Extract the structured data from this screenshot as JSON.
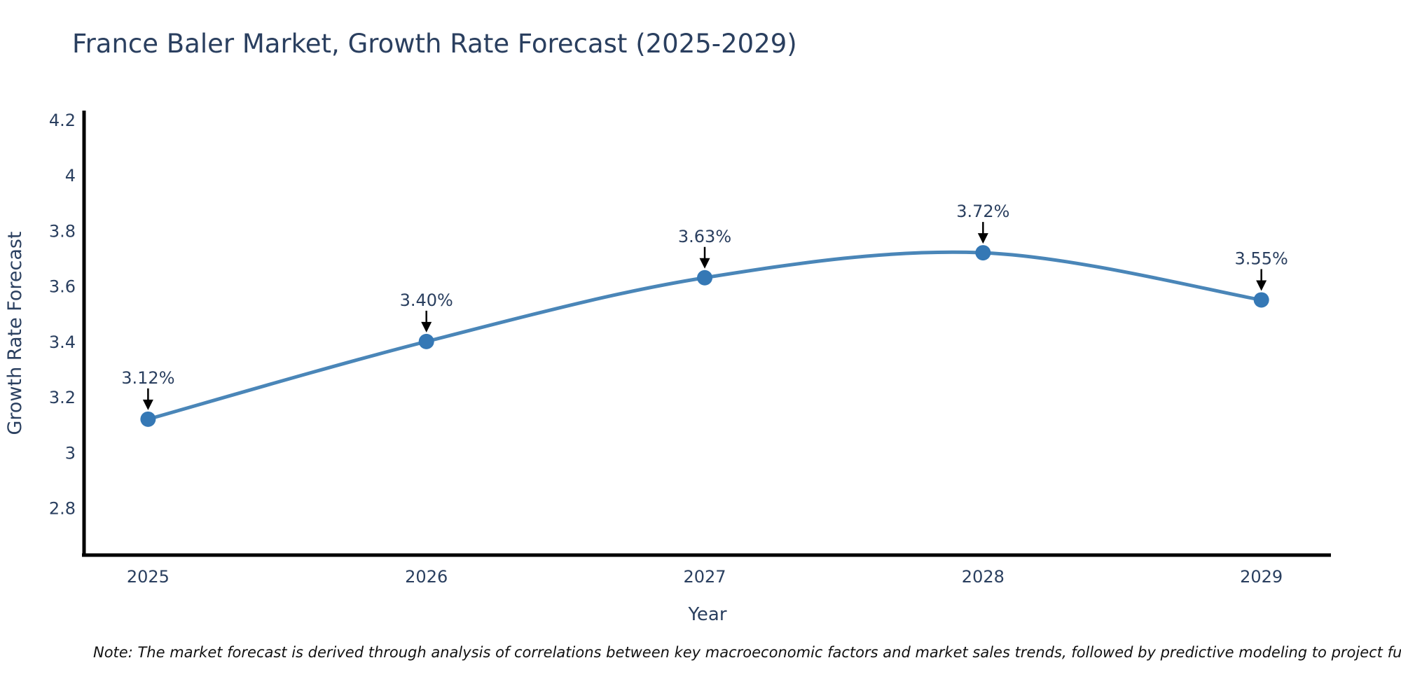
{
  "note": "Note: The market forecast is derived through analysis of correlations between key macroeconomic factors and market sales trends, followed by predictive modeling to project future sales",
  "chart_data": {
    "type": "line",
    "title": "France Baler Market, Growth Rate Forecast (2025-2029)",
    "xlabel": "Year",
    "ylabel": "Growth Rate Forecast",
    "x": [
      2025,
      2026,
      2027,
      2028,
      2029
    ],
    "values": [
      3.12,
      3.4,
      3.63,
      3.72,
      3.55
    ],
    "point_labels": [
      "3.12%",
      "3.40%",
      "3.63%",
      "3.72%",
      "3.55%"
    ],
    "xtick_labels": [
      "2025",
      "2026",
      "2027",
      "2028",
      "2029"
    ],
    "yticks": [
      2.8,
      3,
      3.2,
      3.4,
      3.6,
      3.8,
      4,
      4.2
    ],
    "ytick_labels": [
      "2.8",
      "3",
      "3.2",
      "3.4",
      "3.6",
      "3.8",
      "4",
      "4.2"
    ],
    "xlim": [
      2024.77,
      2029.25
    ],
    "ylim": [
      2.63,
      4.23
    ],
    "grid": false,
    "legend": "none",
    "curve": "spline",
    "annotation_style": "value label above point with downward arrow",
    "colors": {
      "line": "#4a86b8",
      "marker": "#3578b5",
      "text": "#2a3f5f",
      "arrow": "#000000",
      "axis": "#000000",
      "note_text": "#111111",
      "background": "#ffffff"
    }
  }
}
